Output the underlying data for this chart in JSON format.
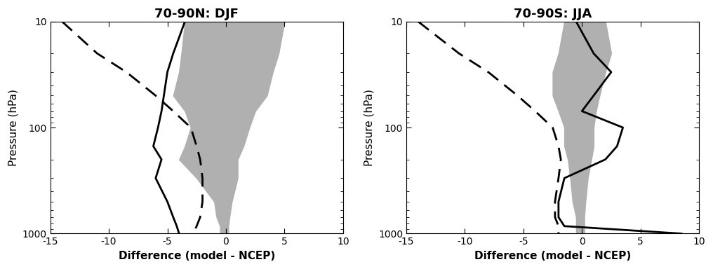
{
  "title_left": "70-90N: DJF",
  "title_right": "70-90S: JJA",
  "xlabel": "Difference (model - NCEP)",
  "ylabel": "Pressure (hPa)",
  "xlim_left": [
    -15,
    10
  ],
  "xlim_right": [
    -15,
    10
  ],
  "xticks": [
    -15,
    -10,
    -5,
    0,
    5,
    10
  ],
  "pressure_levels": [
    10,
    20,
    30,
    50,
    70,
    100,
    150,
    200,
    300,
    500,
    700,
    850,
    1000
  ],
  "left_solid": [
    -3.5,
    -4.5,
    -5.0,
    -5.3,
    -5.5,
    -5.8,
    -6.2,
    -5.5,
    -6.0,
    -5.0,
    -4.5,
    -4.2,
    -4.0
  ],
  "left_dashed": [
    -14.0,
    -11.0,
    -8.5,
    -6.0,
    -4.5,
    -3.0,
    -2.5,
    -2.2,
    -2.0,
    -2.0,
    -2.2,
    -2.5,
    -2.8
  ],
  "left_shade_left": [
    -3.5,
    -3.8,
    -4.0,
    -4.5,
    -3.5,
    -3.0,
    -3.5,
    -4.0,
    -2.5,
    -1.0,
    -0.8,
    -0.5,
    -0.5
  ],
  "left_shade_right": [
    5.0,
    4.5,
    4.0,
    3.5,
    2.5,
    2.0,
    1.5,
    1.0,
    1.0,
    0.5,
    0.3,
    0.2,
    0.2
  ],
  "right_solid": [
    -0.5,
    1.0,
    2.5,
    1.0,
    0.0,
    3.5,
    3.0,
    2.0,
    -1.5,
    -2.0,
    -2.0,
    -1.5,
    8.5
  ],
  "right_dashed": [
    -14.0,
    -10.5,
    -8.0,
    -5.5,
    -4.0,
    -2.5,
    -2.0,
    -1.8,
    -2.0,
    -2.3,
    -2.3,
    -2.0,
    -2.0
  ],
  "right_shade_left": [
    -1.5,
    -2.0,
    -2.5,
    -2.5,
    -2.0,
    -1.5,
    -1.5,
    -1.2,
    -1.0,
    -0.8,
    -0.5,
    -0.5,
    -0.5
  ],
  "right_shade_right": [
    2.0,
    2.5,
    2.0,
    1.5,
    1.2,
    1.0,
    1.0,
    0.8,
    0.5,
    0.3,
    0.2,
    0.2,
    0.2
  ],
  "shade_color": "#b0b0b0",
  "line_color": "black",
  "background_color": "white"
}
